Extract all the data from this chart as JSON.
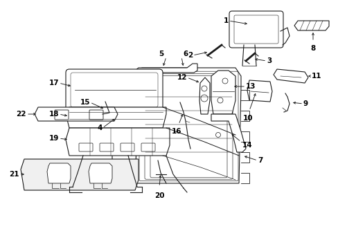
{
  "background_color": "#ffffff",
  "line_color": "#1a1a1a",
  "fig_width": 4.89,
  "fig_height": 3.6,
  "dpi": 100,
  "label_fontsize": 7.5,
  "lw": 0.8
}
